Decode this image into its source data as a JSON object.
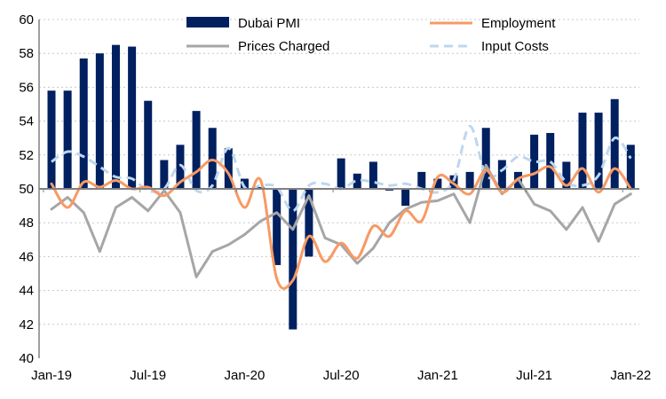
{
  "chart_data": {
    "type": "bar+line",
    "title": "",
    "xlabel": "",
    "ylabel": "",
    "ylim": [
      40,
      60
    ],
    "yticks": [
      "40",
      "42",
      "44",
      "46",
      "48",
      "50",
      "52",
      "54",
      "56",
      "58",
      "60"
    ],
    "xtick_labels": [
      {
        "label": "Jan-19",
        "index": 0
      },
      {
        "label": "Jul-19",
        "index": 6
      },
      {
        "label": "Jan-20",
        "index": 12
      },
      {
        "label": "Jul-20",
        "index": 18
      },
      {
        "label": "Jan-21",
        "index": 24
      },
      {
        "label": "Jul-21",
        "index": 30
      },
      {
        "label": "Jan-22",
        "index": 36
      }
    ],
    "baseline": 50,
    "grid": true,
    "legend_position": "top",
    "months": [
      "Jan-19",
      "Feb-19",
      "Mar-19",
      "Apr-19",
      "May-19",
      "Jun-19",
      "Jul-19",
      "Aug-19",
      "Sep-19",
      "Oct-19",
      "Nov-19",
      "Dec-19",
      "Jan-20",
      "Feb-20",
      "Mar-20",
      "Apr-20",
      "May-20",
      "Jun-20",
      "Jul-20",
      "Aug-20",
      "Sep-20",
      "Oct-20",
      "Nov-20",
      "Dec-20",
      "Jan-21",
      "Feb-21",
      "Mar-21",
      "Apr-21",
      "May-21",
      "Jun-21",
      "Jul-21",
      "Aug-21",
      "Sep-21",
      "Oct-21",
      "Nov-21",
      "Dec-21",
      "Jan-22"
    ],
    "series": [
      {
        "name": "Dubai PMI",
        "kind": "bar",
        "color": "#002060",
        "values": [
          55.8,
          55.8,
          57.7,
          58.0,
          58.5,
          58.4,
          55.2,
          51.7,
          52.6,
          54.6,
          53.6,
          52.4,
          50.6,
          50.1,
          45.5,
          41.7,
          46.0,
          50.0,
          51.8,
          50.9,
          51.6,
          49.9,
          49.0,
          51.0,
          50.6,
          50.8,
          51.0,
          53.6,
          51.7,
          51.0,
          53.2,
          53.3,
          51.6,
          54.5,
          54.5,
          55.3,
          52.6
        ]
      },
      {
        "name": "Employment",
        "kind": "line",
        "style": "solid-smooth",
        "color": "#F79A64",
        "values": [
          50.3,
          48.9,
          50.4,
          50.1,
          50.5,
          50.0,
          50.1,
          49.6,
          50.4,
          51.0,
          51.7,
          50.9,
          48.9,
          50.5,
          44.7,
          44.6,
          47.2,
          45.7,
          46.8,
          45.9,
          47.8,
          47.2,
          48.7,
          48.1,
          50.7,
          50.3,
          49.7,
          51.1,
          49.8,
          50.6,
          50.9,
          51.3,
          50.2,
          51.2,
          49.8,
          51.2,
          50.0
        ]
      },
      {
        "name": "Prices Charged",
        "kind": "line",
        "style": "solid",
        "color": "#A6A6A6",
        "values": [
          48.8,
          49.5,
          48.6,
          46.3,
          48.9,
          49.5,
          48.7,
          49.9,
          48.6,
          44.8,
          46.3,
          46.7,
          47.3,
          48.1,
          48.6,
          47.6,
          49.6,
          47.1,
          46.7,
          45.6,
          46.5,
          48.0,
          48.8,
          49.2,
          49.3,
          49.7,
          48.0,
          51.4,
          49.7,
          50.6,
          49.1,
          48.7,
          47.6,
          48.9,
          46.9,
          49.1,
          49.7
        ]
      },
      {
        "name": "Input Costs",
        "kind": "line",
        "style": "dashed",
        "color": "#BDD7EE",
        "values": [
          51.6,
          52.2,
          51.9,
          51.3,
          50.7,
          50.6,
          49.9,
          50.0,
          51.4,
          49.9,
          50.2,
          52.4,
          50.1,
          50.2,
          50.1,
          48.7,
          50.2,
          50.3,
          50.0,
          50.5,
          50.4,
          50.2,
          50.3,
          50.0,
          49.8,
          50.5,
          53.7,
          50.8,
          51.1,
          51.9,
          51.6,
          51.6,
          50.4,
          50.2,
          50.8,
          53.0,
          51.8
        ]
      }
    ]
  }
}
